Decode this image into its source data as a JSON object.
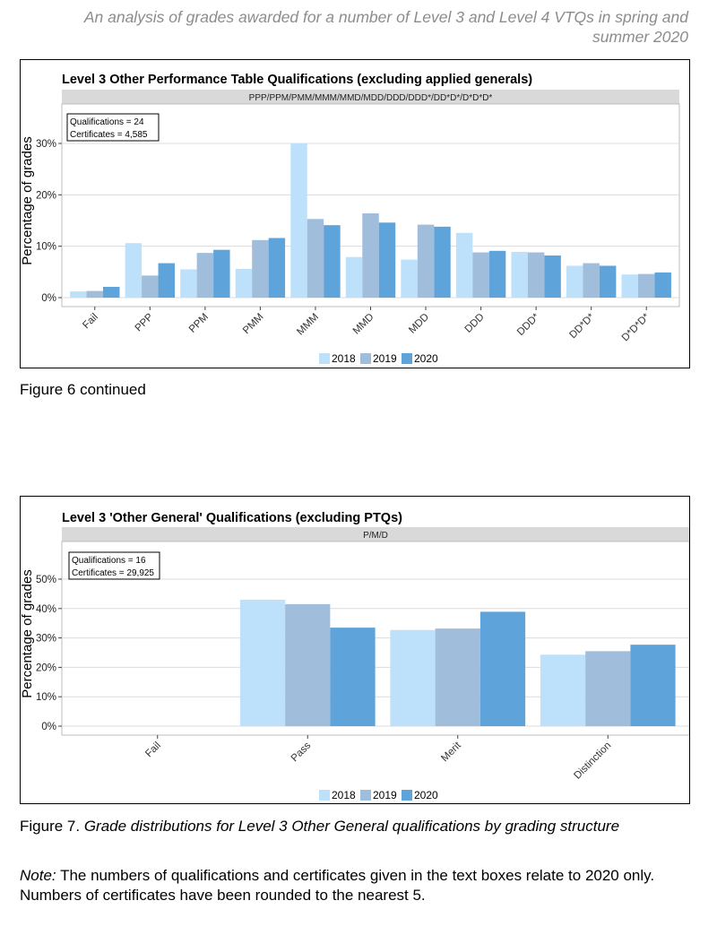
{
  "header": {
    "running_title": "An analysis of grades awarded for a number of Level 3 and Level 4 VTQs in spring and summer 2020"
  },
  "captions": {
    "figure6": "Figure 6 continued",
    "figure7_number": "Figure 7.",
    "figure7_text": "Grade distributions for Level 3 Other General qualifications by grading structure",
    "note_label": "Note:",
    "note_text": "The numbers of qualifications and certificates given in the text boxes relate to 2020 only. Numbers of certificates have been rounded to the nearest 5."
  },
  "colors": {
    "2018": "#bde0fb",
    "2019": "#a0bedc",
    "2020": "#5ea4da",
    "strip": "#d9d9d9",
    "grid": "#dcdcdc"
  },
  "chart_data": [
    {
      "type": "bar",
      "title": "Level 3 Other Performance Table Qualifications (excluding applied generals)",
      "subtitle": "PPP/PPM/PMM/MMM/MMD/MDD/DDD/DDD*/DD*D*/D*D*D*",
      "info_lines": [
        "Qualifications = 24",
        "Certificates =  4,585"
      ],
      "ylabel": "Percentage of grades",
      "ylim": [
        0,
        30
      ],
      "yticks": [
        0,
        10,
        20,
        30
      ],
      "ytick_labels": [
        "0%",
        "10%",
        "20%",
        "30%"
      ],
      "categories": [
        "Fail",
        "PPP",
        "PPM",
        "PMM",
        "MMM",
        "MMD",
        "MDD",
        "DDD",
        "DDD*",
        "DD*D*",
        "D*D*D*"
      ],
      "series": [
        {
          "name": "2018",
          "values": [
            1.2,
            10.6,
            5.5,
            5.6,
            30.0,
            7.9,
            7.4,
            12.6,
            8.9,
            6.2,
            4.5
          ]
        },
        {
          "name": "2019",
          "values": [
            1.3,
            4.3,
            8.7,
            11.2,
            15.3,
            16.4,
            14.2,
            8.8,
            8.8,
            6.7,
            4.6
          ]
        },
        {
          "name": "2020",
          "values": [
            2.1,
            6.7,
            9.3,
            11.6,
            14.1,
            14.6,
            13.8,
            9.1,
            8.2,
            6.2,
            4.9
          ]
        }
      ],
      "legend": "bottom",
      "grid": true
    },
    {
      "type": "bar",
      "title": "Level 3 'Other General' Qualifications (excluding PTQs)",
      "subtitle": "P/M/D",
      "info_lines": [
        "Qualifications = 16",
        "Certificates = 29,925"
      ],
      "ylabel": "Percentage of grades",
      "ylim": [
        0,
        50
      ],
      "yticks": [
        0,
        10,
        20,
        30,
        40,
        50
      ],
      "ytick_labels": [
        "0%",
        "10%",
        "20%",
        "30%",
        "40%",
        "50%"
      ],
      "categories": [
        "Fail",
        "Pass",
        "Merit",
        "Distinction"
      ],
      "series": [
        {
          "name": "2018",
          "values": [
            0,
            43.0,
            32.7,
            24.3
          ]
        },
        {
          "name": "2019",
          "values": [
            0,
            41.5,
            33.2,
            25.5
          ]
        },
        {
          "name": "2020",
          "values": [
            0,
            33.5,
            38.9,
            27.7
          ]
        }
      ],
      "legend": "bottom",
      "grid": true
    }
  ]
}
